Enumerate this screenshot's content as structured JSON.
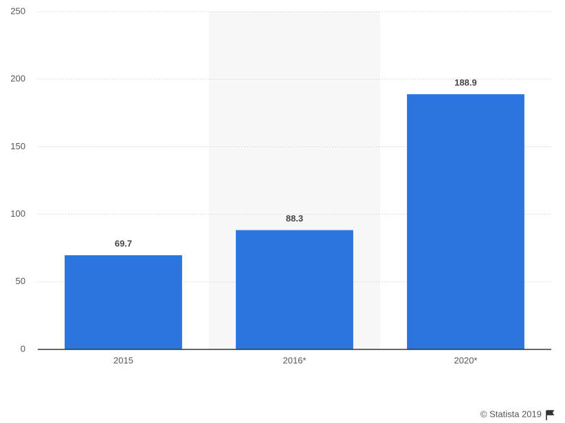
{
  "chart_data": {
    "type": "bar",
    "categories": [
      "2015",
      "2016*",
      "2020*"
    ],
    "values": [
      69.7,
      88.3,
      188.9
    ],
    "color": "#2a76dd",
    "ylim": [
      0,
      250
    ],
    "yticks": [
      0,
      50,
      100,
      150,
      200,
      250
    ],
    "grid": true,
    "source": "© Statista 2019"
  }
}
